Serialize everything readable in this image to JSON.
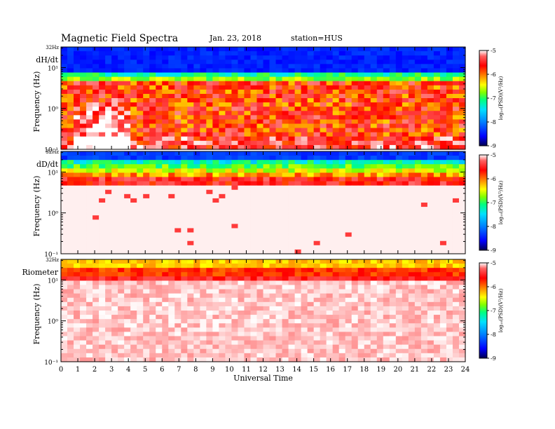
{
  "header": {
    "title": "Magnetic  Field  Spectra",
    "date": "Jan. 23, 2018",
    "station": "station=HUS"
  },
  "chart_data": [
    {
      "type": "heatmap",
      "panel_label": "dH/dt",
      "top_freq_label": "32Hz",
      "ylabel": "Frequency  (Hz)",
      "yscale": "log",
      "ylim": [
        0.1,
        32
      ],
      "ytick_labels": [
        "10⁻¹",
        "10⁰",
        "10¹"
      ],
      "xlim": [
        0,
        24
      ],
      "colorbar": {
        "label": "log₁₀(PSD)(V²/Hz)",
        "range": [
          -9,
          -5
        ],
        "tick_labels": [
          "-5",
          "-6",
          "-7",
          "-8",
          "-9"
        ]
      }
    },
    {
      "type": "heatmap",
      "panel_label": "dD/dt",
      "top_freq_label": "32Hz",
      "ylabel": "Frequency  (Hz)",
      "yscale": "log",
      "ylim": [
        0.1,
        32
      ],
      "ytick_labels": [
        "10⁻¹",
        "10⁰",
        "10¹"
      ],
      "xlim": [
        0,
        24
      ],
      "colorbar": {
        "label": "log₁₀(PSD)(V²/Hz)",
        "range": [
          -9,
          -5
        ],
        "tick_labels": [
          "-5",
          "-6",
          "-7",
          "-8",
          "-9"
        ]
      }
    },
    {
      "type": "heatmap",
      "panel_label": "Riometer",
      "top_freq_label": "32Hz",
      "ylabel": "Frequency  (Hz)",
      "yscale": "log",
      "ylim": [
        0.1,
        32
      ],
      "ytick_labels": [
        "10⁻¹",
        "10⁰",
        "10¹"
      ],
      "xlim": [
        0,
        24
      ],
      "xlabel": "Universal Time",
      "xtick_labels": [
        "0",
        "1",
        "2",
        "3",
        "4",
        "5",
        "6",
        "7",
        "8",
        "9",
        "10",
        "11",
        "12",
        "13",
        "14",
        "15",
        "16",
        "17",
        "18",
        "19",
        "20",
        "21",
        "22",
        "23",
        "24"
      ],
      "colorbar": {
        "label": "log₁₀(PSD)(V²/Hz)",
        "range": [
          -9,
          -5
        ],
        "tick_labels": [
          "-5",
          "-6",
          "-7",
          "-8",
          "-9"
        ]
      }
    }
  ],
  "colors": {
    "colormap": [
      "#000050",
      "#0000ff",
      "#0080ff",
      "#00e0ff",
      "#00ff80",
      "#80ff00",
      "#ffff00",
      "#ff8000",
      "#ff0000",
      "#ff6060",
      "#ffffff"
    ]
  }
}
